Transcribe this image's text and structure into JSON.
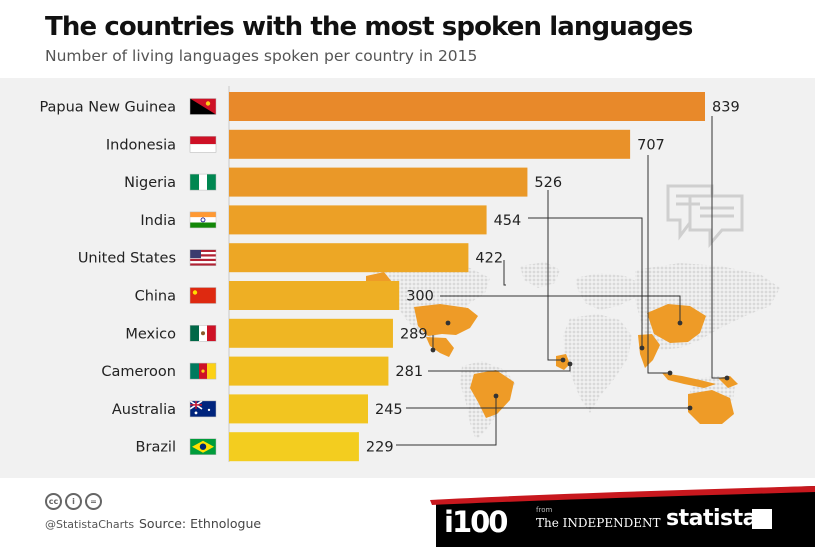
{
  "title": "The countries with the most spoken languages",
  "subtitle": "Number of living languages spoken per country in 2015",
  "footer": {
    "handle": "@StatistaCharts",
    "source": "Source: Ethnologue",
    "cc_icons": [
      "cc",
      "i",
      "="
    ],
    "logo_i100": "i100",
    "from": "from",
    "independent": "The INDEPENDENT",
    "statista": "statista"
  },
  "colors": {
    "bar_top": "#e8892a",
    "bar_bottom": "#f3cd1f",
    "map_land": "#e1e1e1",
    "map_highlight": "#ee9b27",
    "background_band": "#f1f1f1",
    "footer_red": "#c8181e"
  },
  "chart_data": {
    "type": "bar",
    "orientation": "horizontal",
    "title": "The countries with the most spoken languages",
    "subtitle": "Number of living languages spoken per country in 2015",
    "categories": [
      "Papua New Guinea",
      "Indonesia",
      "Nigeria",
      "India",
      "United States",
      "China",
      "Mexico",
      "Cameroon",
      "Australia",
      "Brazil"
    ],
    "values": [
      839,
      707,
      526,
      454,
      422,
      300,
      289,
      281,
      245,
      229
    ],
    "flags": [
      "papua-new-guinea-flag",
      "indonesia-flag",
      "nigeria-flag",
      "india-flag",
      "united-states-flag",
      "china-flag",
      "mexico-flag",
      "cameroon-flag",
      "australia-flag",
      "brazil-flag"
    ],
    "xlim": [
      0,
      839
    ],
    "grid": false,
    "legend": "none"
  }
}
